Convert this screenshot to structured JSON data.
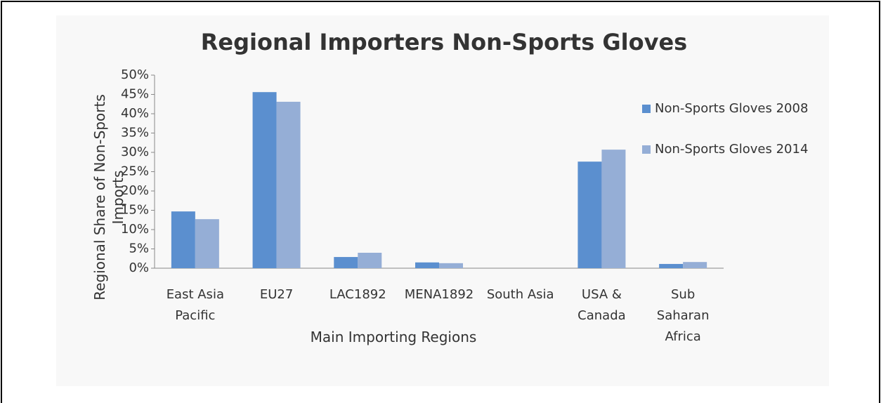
{
  "chart_data": {
    "type": "bar",
    "title": "Regional Importers Non-Sports Gloves",
    "x_label": "Main Importing Regions",
    "y_label": "Regional Share of Non-Sports Imports",
    "categories": [
      "East Asia Pacific",
      "EU27",
      "LAC1892",
      "MENA1892",
      "South Asia",
      "USA & Canada",
      "Sub Saharan Africa"
    ],
    "series": [
      {
        "name": "Non-Sports Gloves 2008",
        "color": "#5b8fcf",
        "values": [
          14.7,
          45.6,
          2.9,
          1.5,
          0,
          27.6,
          1.1
        ]
      },
      {
        "name": "Non-Sports Gloves 2014",
        "color": "#95aed6",
        "values": [
          12.7,
          43.1,
          4.0,
          1.3,
          0,
          30.7,
          1.6
        ]
      }
    ],
    "ylim": [
      0,
      50
    ],
    "yticks": [
      {
        "value": 0,
        "label": "0%"
      },
      {
        "value": 5,
        "label": "5%"
      },
      {
        "value": 10,
        "label": "10%"
      },
      {
        "value": 15,
        "label": "15%"
      },
      {
        "value": 20,
        "label": "20%"
      },
      {
        "value": 25,
        "label": "25%"
      },
      {
        "value": 30,
        "label": "30%"
      },
      {
        "value": 35,
        "label": "35%"
      },
      {
        "value": 40,
        "label": "40%"
      },
      {
        "value": 45,
        "label": "45%"
      },
      {
        "value": 50,
        "label": "50%"
      }
    ],
    "grid": false,
    "legend": "right"
  }
}
